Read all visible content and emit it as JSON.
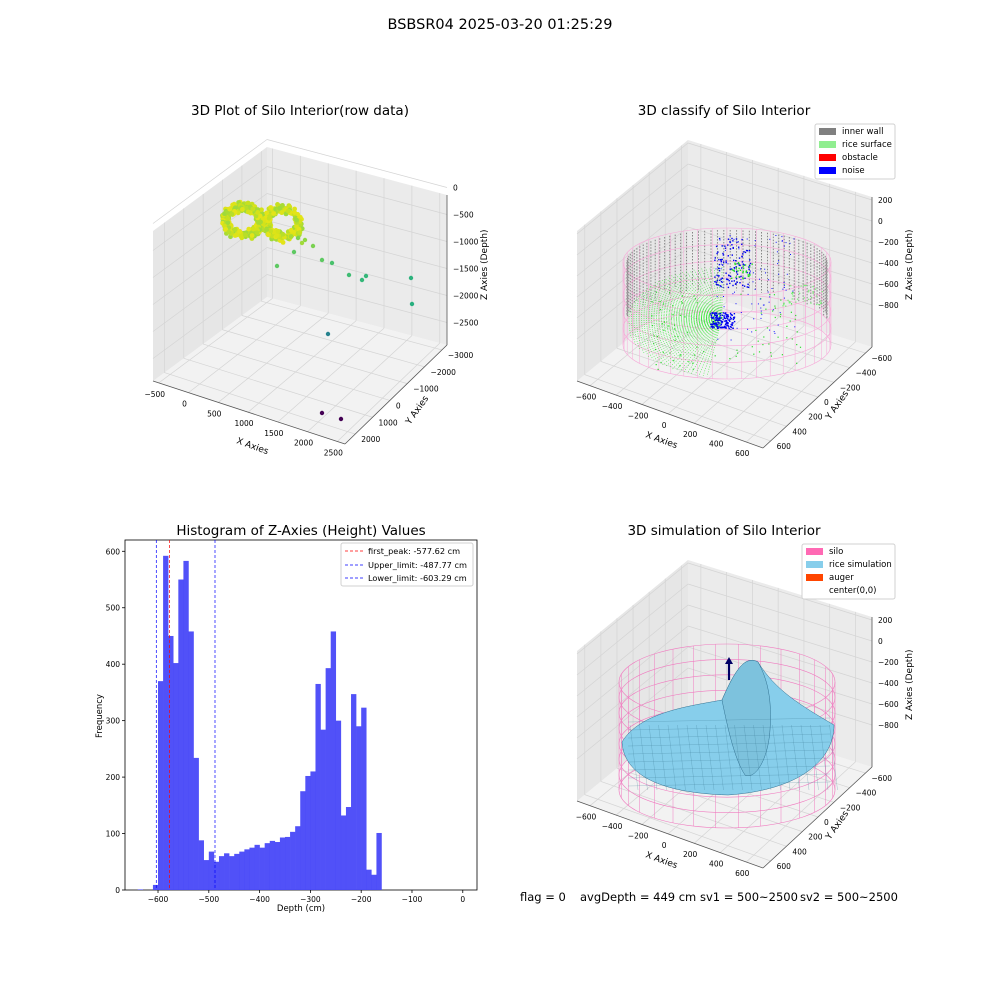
{
  "figure": {
    "suptitle": "BSBSR04 2025-03-20 01:25:29",
    "status": {
      "flag": "flag = 0",
      "avg_depth": "avgDepth = 449 cm",
      "sv1": "sv1 = 500~2500",
      "sv2": "sv2 = 500~2500"
    }
  },
  "chart_data": [
    {
      "type": "scatter",
      "subtype": "3d",
      "title": "3D Plot of Silo Interior(row data)",
      "xlabel": "X Axies",
      "ylabel": "Y Axies",
      "zlabel": "Z Axies (Depth)",
      "x_ticks": [
        "−500",
        "0",
        "500",
        "1000",
        "1500",
        "2000",
        "2500"
      ],
      "y_ticks": [
        "−3000",
        "−2000",
        "−1000",
        "0",
        "1000",
        "2000"
      ],
      "z_ticks": [
        "−2500",
        "−2000",
        "−1500",
        "−1000",
        "−500",
        "0"
      ],
      "colormap": "viridis"
    },
    {
      "type": "scatter",
      "subtype": "3d",
      "title": "3D classify of Silo Interior",
      "xlabel": "X Axies",
      "ylabel": "Y Axies",
      "zlabel": "Z Axies (Depth)",
      "x_ticks": [
        "−600",
        "−400",
        "−200",
        "0",
        "200",
        "400",
        "600"
      ],
      "y_ticks": [
        "−600",
        "−400",
        "−200",
        "0",
        "200",
        "400",
        "600"
      ],
      "z_ticks": [
        "−800",
        "−600",
        "−400",
        "−200",
        "0",
        "200"
      ],
      "legend": [
        {
          "label": "inner wall",
          "color": "#808080"
        },
        {
          "label": "rice surface",
          "color": "#90ee90"
        },
        {
          "label": "obstacle",
          "color": "#ff0000"
        },
        {
          "label": "noise",
          "color": "#0000ff"
        }
      ],
      "legend_position": "top-right"
    },
    {
      "type": "bar",
      "subtype": "histogram",
      "title": "Histogram of Z-Axies (Height) Values",
      "xlabel": "Depth (cm)",
      "ylabel": "Frequency",
      "xlim": [
        -665,
        28
      ],
      "ylim": [
        0,
        620
      ],
      "x_ticks": [
        "−600",
        "−500",
        "−400",
        "−300",
        "−200",
        "−100",
        "0"
      ],
      "y_ticks": [
        "0",
        "100",
        "200",
        "300",
        "400",
        "500",
        "600"
      ],
      "bin_width": 10.5,
      "bar_color": "#4848f8",
      "bins": [
        [
          -640,
          1
        ],
        [
          -630,
          0
        ],
        [
          -620,
          0
        ],
        [
          -610,
          9
        ],
        [
          -600,
          370
        ],
        [
          -590,
          592
        ],
        [
          -580,
          450
        ],
        [
          -570,
          402
        ],
        [
          -560,
          550
        ],
        [
          -550,
          583
        ],
        [
          -540,
          458
        ],
        [
          -530,
          234
        ],
        [
          -520,
          88
        ],
        [
          -510,
          53
        ],
        [
          -500,
          68
        ],
        [
          -490,
          50
        ],
        [
          -480,
          60
        ],
        [
          -470,
          65
        ],
        [
          -460,
          60
        ],
        [
          -450,
          64
        ],
        [
          -440,
          68
        ],
        [
          -430,
          72
        ],
        [
          -420,
          75
        ],
        [
          -410,
          80
        ],
        [
          -400,
          75
        ],
        [
          -390,
          83
        ],
        [
          -380,
          87
        ],
        [
          -370,
          85
        ],
        [
          -360,
          93
        ],
        [
          -350,
          94
        ],
        [
          -340,
          103
        ],
        [
          -330,
          113
        ],
        [
          -320,
          175
        ],
        [
          -310,
          202
        ],
        [
          -300,
          210
        ],
        [
          -290,
          365
        ],
        [
          -280,
          284
        ],
        [
          -270,
          393
        ],
        [
          -260,
          458
        ],
        [
          -250,
          300
        ],
        [
          -240,
          132
        ],
        [
          -230,
          147
        ],
        [
          -220,
          347
        ],
        [
          -210,
          290
        ],
        [
          -200,
          323
        ],
        [
          -190,
          36
        ],
        [
          -180,
          27
        ],
        [
          -170,
          101
        ]
      ],
      "vlines": [
        {
          "label": "first_peak: -577.62 cm",
          "x": -577.62,
          "color": "#ff0000"
        },
        {
          "label": "Upper_limit: -487.77 cm",
          "x": -487.77,
          "color": "#0000ff"
        },
        {
          "label": "Lower_limit: -603.29 cm",
          "x": -603.29,
          "color": "#0000ff"
        }
      ],
      "legend_position": "top-right"
    },
    {
      "type": "surface",
      "subtype": "3d",
      "title": "3D simulation of Silo Interior",
      "xlabel": "X Axies",
      "ylabel": "Y Axies",
      "zlabel": "Z Axies (Depth)",
      "x_ticks": [
        "−600",
        "−400",
        "−200",
        "0",
        "200",
        "400",
        "600"
      ],
      "y_ticks": [
        "−600",
        "−400",
        "−200",
        "0",
        "200",
        "400",
        "600"
      ],
      "z_ticks": [
        "−800",
        "−600",
        "−400",
        "−200",
        "0",
        "200"
      ],
      "legend": [
        {
          "label": "silo",
          "color": "#ff69b4"
        },
        {
          "label": "rice simulation",
          "color": "#87ceeb"
        },
        {
          "label": "auger",
          "color": "#ff4500"
        },
        {
          "label": "center(0,0)",
          "color": "#ffffff"
        }
      ],
      "legend_position": "top-right"
    }
  ]
}
